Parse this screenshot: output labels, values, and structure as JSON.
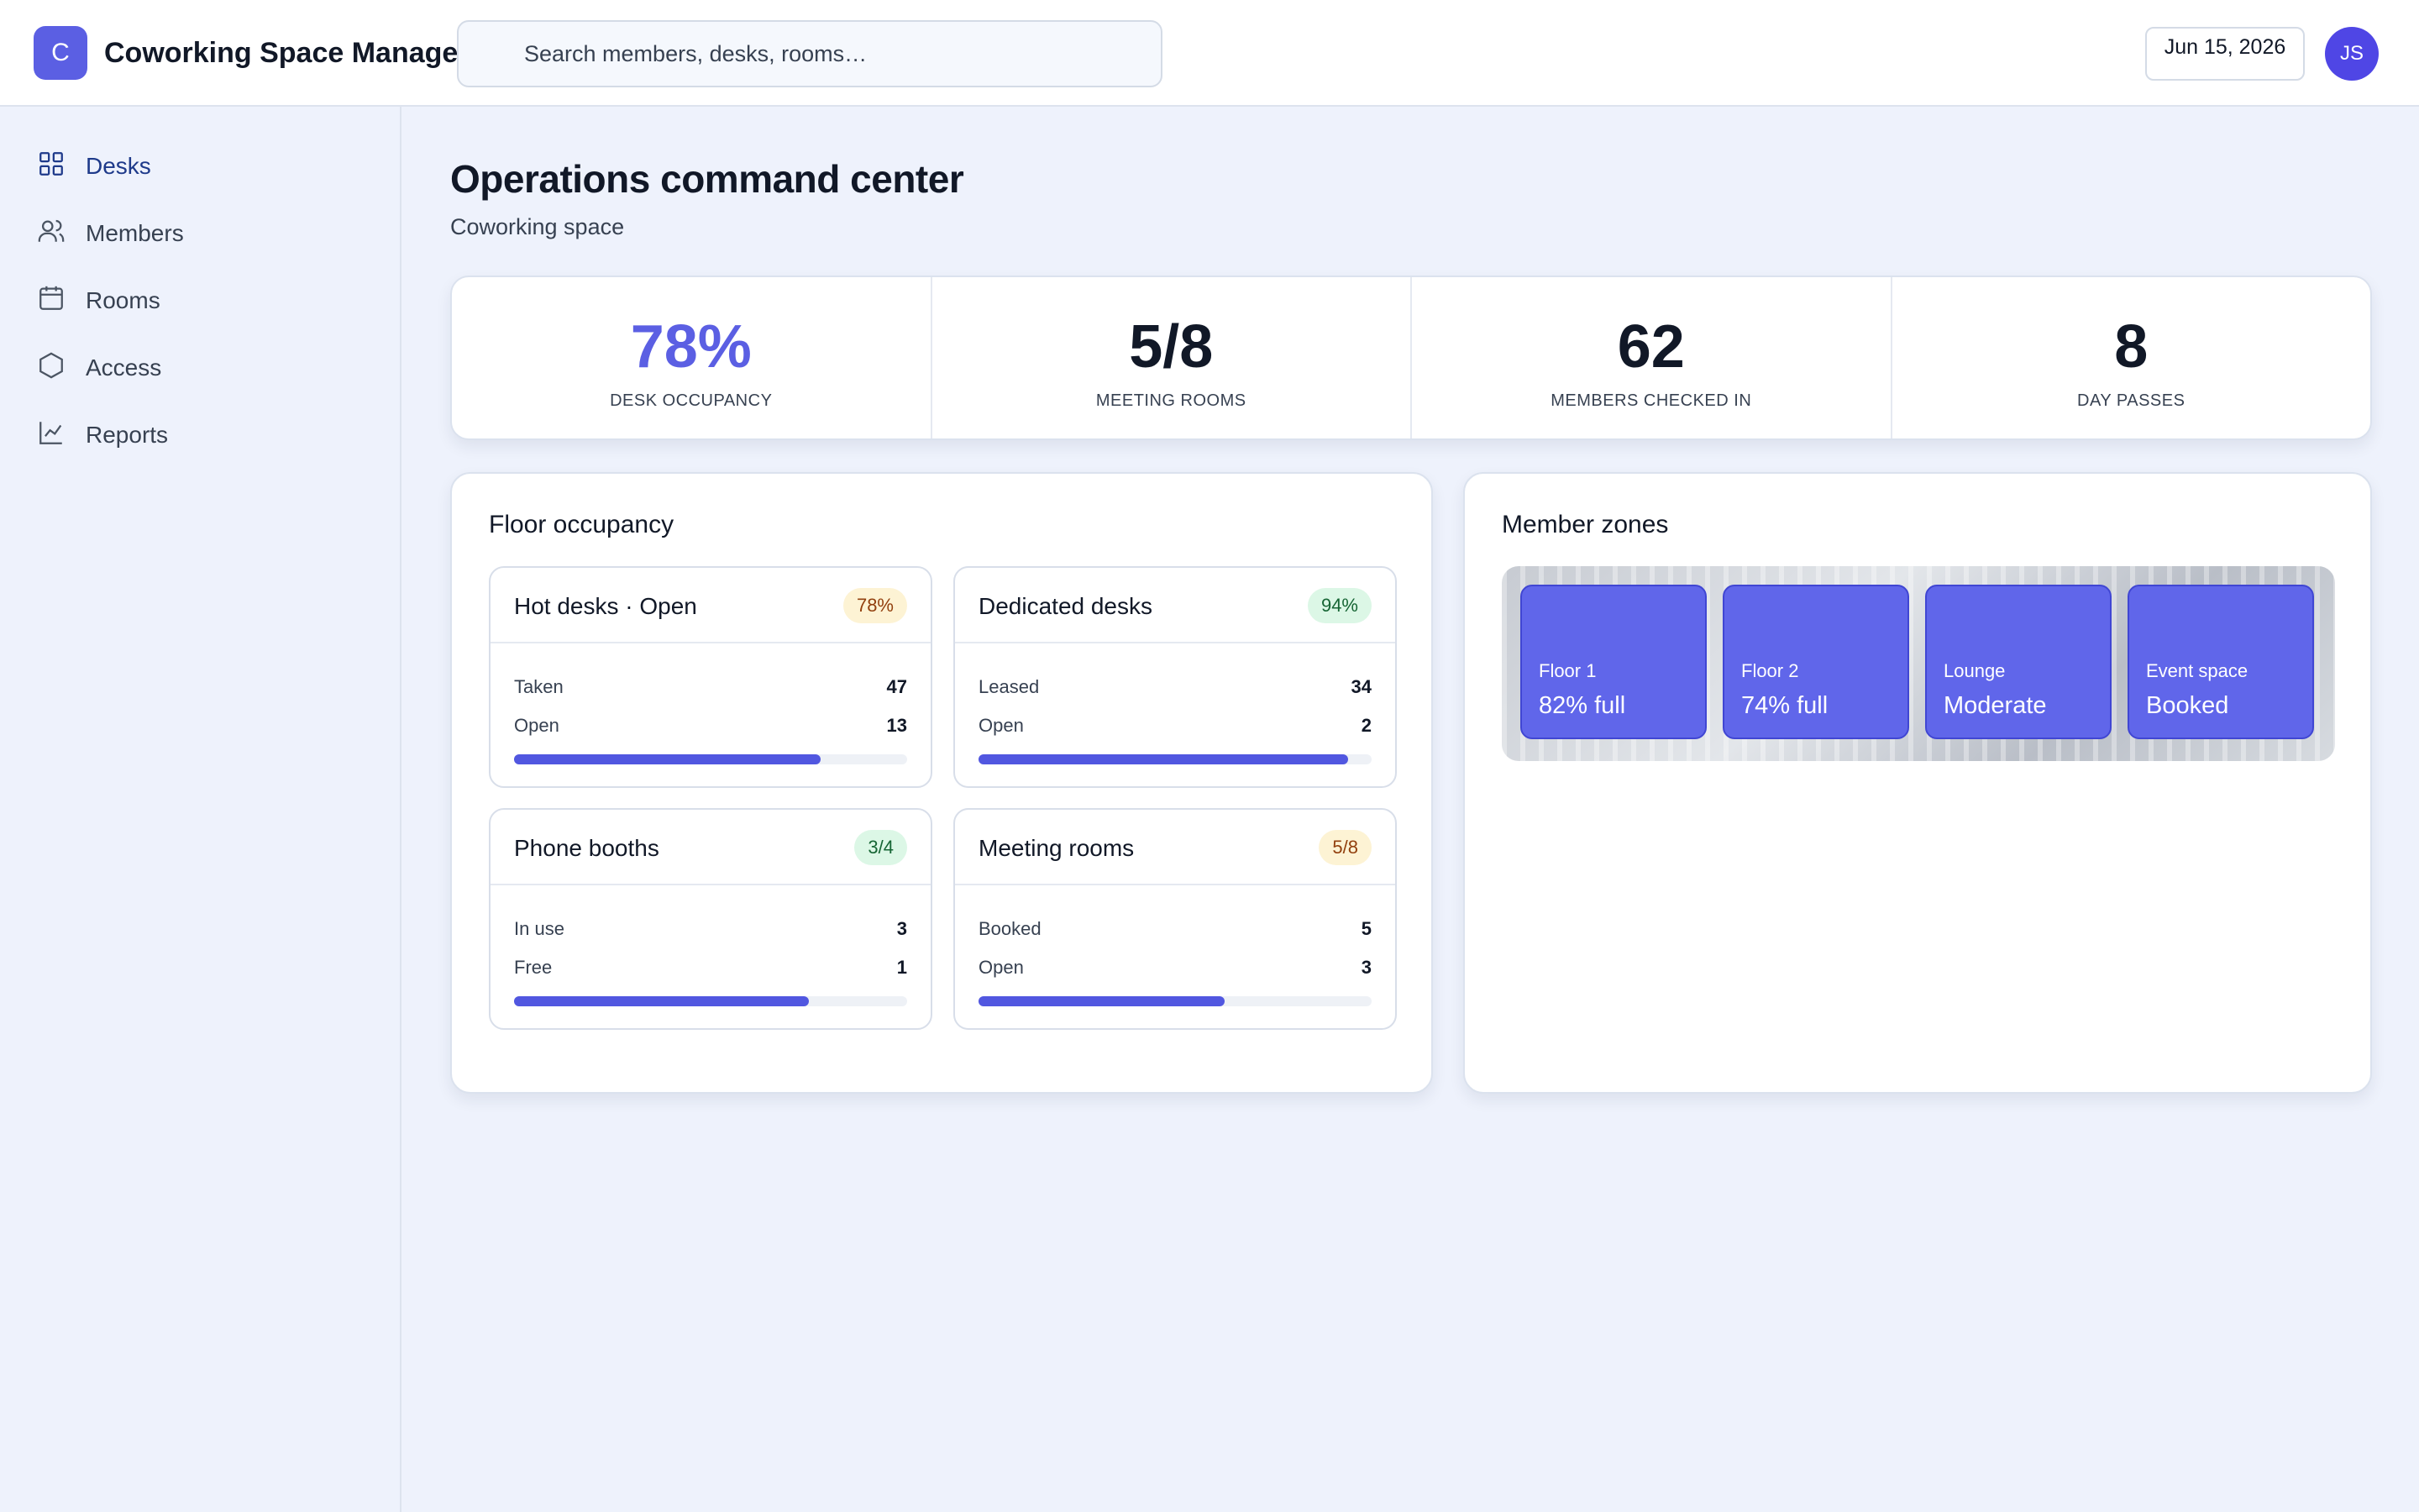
{
  "app": {
    "logo_letter": "C",
    "title": "Coworking Space Manager",
    "search_placeholder": "Search members, desks, rooms…",
    "date": "Jun 15, 2026",
    "user_initials": "JS"
  },
  "sidebar": {
    "items": [
      {
        "label": "Desks",
        "icon": "grid-icon",
        "active": true
      },
      {
        "label": "Members",
        "icon": "users-icon",
        "active": false
      },
      {
        "label": "Rooms",
        "icon": "calendar-icon",
        "active": false
      },
      {
        "label": "Access",
        "icon": "hexagon-icon",
        "active": false
      },
      {
        "label": "Reports",
        "icon": "chart-line-icon",
        "active": false
      }
    ]
  },
  "page": {
    "title": "Operations command center",
    "subtitle": "Coworking space"
  },
  "kpis": [
    {
      "value": "78%",
      "label": "DESK OCCUPANCY"
    },
    {
      "value": "5/8",
      "label": "MEETING ROOMS"
    },
    {
      "value": "62",
      "label": "MEMBERS CHECKED IN"
    },
    {
      "value": "8",
      "label": "DAY PASSES"
    }
  ],
  "floor": {
    "title": "Floor occupancy",
    "cards": [
      {
        "title": "Hot desks · Open",
        "badge": "78%",
        "badge_tone": "amber",
        "rows": [
          {
            "label": "Taken",
            "value": "47"
          },
          {
            "label": "Open",
            "value": "13"
          }
        ],
        "progress": 0.78
      },
      {
        "title": "Dedicated desks",
        "badge": "94%",
        "badge_tone": "green",
        "rows": [
          {
            "label": "Leased",
            "value": "34"
          },
          {
            "label": "Open",
            "value": "2"
          }
        ],
        "progress": 0.94
      },
      {
        "title": "Phone booths",
        "badge": "3/4",
        "badge_tone": "green",
        "rows": [
          {
            "label": "In use",
            "value": "3"
          },
          {
            "label": "Free",
            "value": "1"
          }
        ],
        "progress": 0.75
      },
      {
        "title": "Meeting rooms",
        "badge": "5/8",
        "badge_tone": "amber",
        "rows": [
          {
            "label": "Booked",
            "value": "5"
          },
          {
            "label": "Open",
            "value": "3"
          }
        ],
        "progress": 0.625
      }
    ]
  },
  "zones": {
    "title": "Member zones",
    "items": [
      {
        "name": "Floor 1",
        "status": "82% full"
      },
      {
        "name": "Floor 2",
        "status": "74% full"
      },
      {
        "name": "Lounge",
        "status": "Moderate"
      },
      {
        "name": "Event space",
        "status": "Booked"
      }
    ]
  },
  "colors": {
    "accent": "#5b5fe3",
    "progress": "#5157e0",
    "zone_tile": "#6066ea",
    "badge_amber": "#fdf3d4",
    "badge_green": "#dcf7e6"
  }
}
